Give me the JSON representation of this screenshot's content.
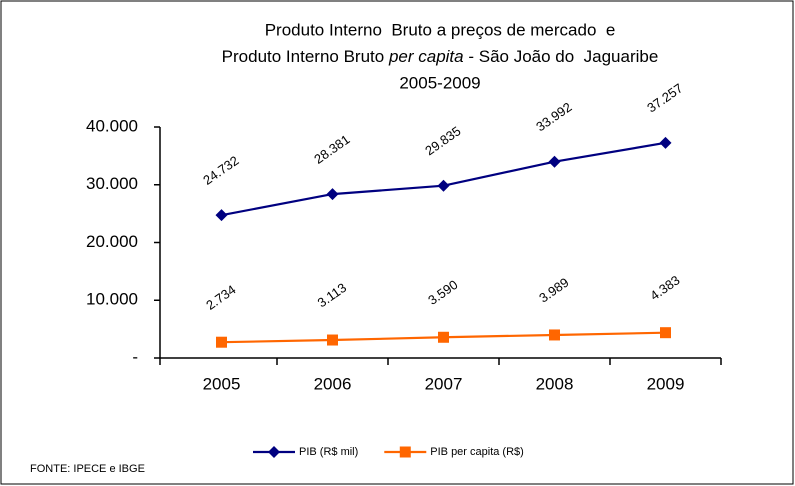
{
  "chart_data": {
    "type": "line",
    "title": [
      "Produto Interno  Bruto a preços de mercado  e",
      [
        "Produto Interno Bruto ",
        "per capita",
        " - São João do  Jaguaribe"
      ],
      "2005-2009"
    ],
    "categories": [
      "2005",
      "2006",
      "2007",
      "2008",
      "2009"
    ],
    "series": [
      {
        "name": "PIB (R$ mil)",
        "color": "#000080",
        "marker": "diamond",
        "values": [
          24732,
          28381,
          29835,
          33992,
          37257
        ],
        "value_labels": [
          "24.732",
          "28.381",
          "29.835",
          "33.992",
          "37.257"
        ]
      },
      {
        "name": "PIB per capita (R$)",
        "color": "#ff6600",
        "marker": "square",
        "values": [
          2734,
          3113,
          3590,
          3989,
          4383
        ],
        "value_labels": [
          "2.734",
          "3.113",
          "3.590",
          "3.989",
          "4.383"
        ]
      }
    ],
    "ylim": [
      0,
      40000
    ],
    "yticks": [
      {
        "value": 0,
        "label": "-"
      },
      {
        "value": 10000,
        "label": "10.000"
      },
      {
        "value": 20000,
        "label": "20.000"
      },
      {
        "value": 30000,
        "label": "30.000"
      },
      {
        "value": 40000,
        "label": "40.000"
      }
    ],
    "grid": false,
    "legend": "bottom",
    "source": "FONTE: IPECE e IBGE"
  }
}
